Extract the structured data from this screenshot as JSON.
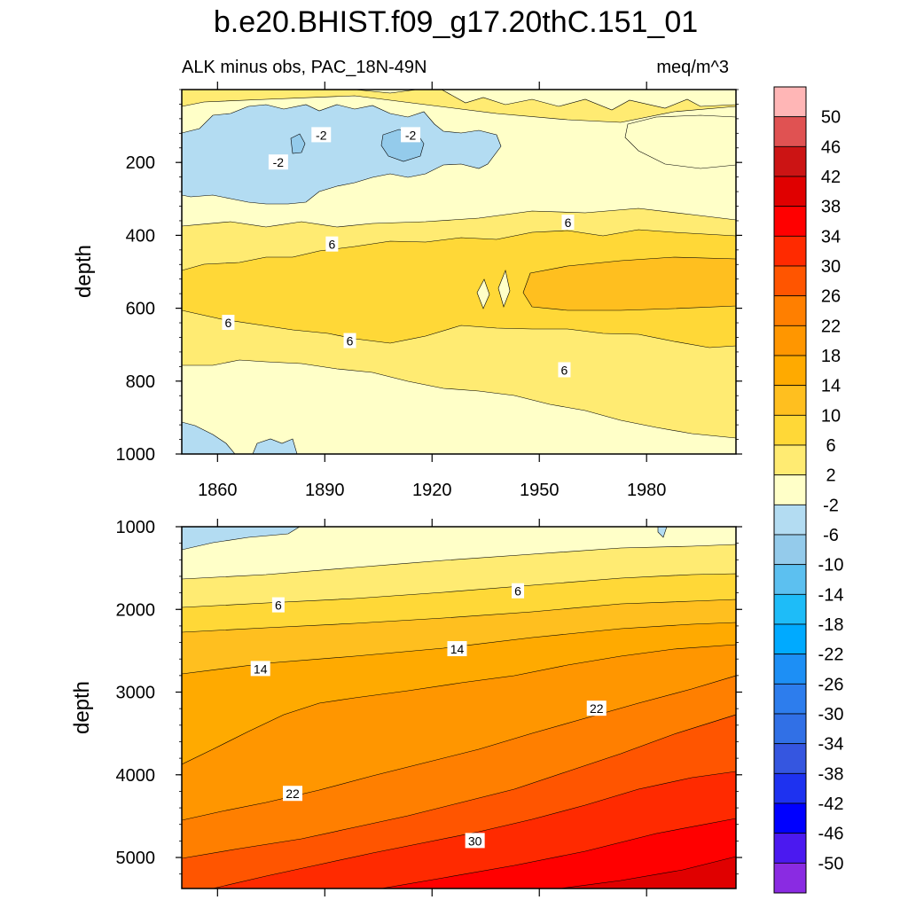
{
  "title": "b.e20.BHIST.f09_g17.20thC.151_01",
  "subtitle_left": "ALK minus obs, PAC_18N-49N",
  "subtitle_right": "meq/m^3",
  "chart_data": {
    "type": "contour",
    "variable": "ALK minus obs",
    "region": "PAC_18N-49N",
    "units": "meq/m^3",
    "x_range": [
      1850,
      2005
    ],
    "x_ticks": [
      "1860",
      "1890",
      "1920",
      "1950",
      "1980"
    ],
    "panels": [
      {
        "name": "upper",
        "ylabel": "depth",
        "y_range": [
          0,
          1000
        ],
        "y_ticks": [
          "200",
          "400",
          "600",
          "800",
          "1000"
        ],
        "contour_labels": [
          {
            "text": "-2",
            "x": 1889,
            "y": 125
          },
          {
            "text": "-2",
            "x": 1914,
            "y": 125
          },
          {
            "text": "-2",
            "x": 1877,
            "y": 200
          },
          {
            "text": "6",
            "x": 1892,
            "y": 425
          },
          {
            "text": "6",
            "x": 1958,
            "y": 365
          },
          {
            "text": "6",
            "x": 1863,
            "y": 640
          },
          {
            "text": "6",
            "x": 1897,
            "y": 690
          },
          {
            "text": "6",
            "x": 1957,
            "y": 770
          }
        ]
      },
      {
        "name": "lower",
        "ylabel": "depth",
        "y_range": [
          1000,
          5375
        ],
        "y_ticks": [
          "1000",
          "2000",
          "3000",
          "4000",
          "5000"
        ],
        "contour_labels": [
          {
            "text": "6",
            "x": 1877,
            "y": 1950
          },
          {
            "text": "6",
            "x": 1944,
            "y": 1780
          },
          {
            "text": "14",
            "x": 1872,
            "y": 2720
          },
          {
            "text": "14",
            "x": 1927,
            "y": 2480
          },
          {
            "text": "22",
            "x": 1966,
            "y": 3200
          },
          {
            "text": "22",
            "x": 1881,
            "y": 4230
          },
          {
            "text": "30",
            "x": 1932,
            "y": 4800
          }
        ]
      }
    ],
    "colorbar": {
      "levels": [
        "50",
        "46",
        "42",
        "38",
        "34",
        "30",
        "26",
        "22",
        "18",
        "14",
        "10",
        "6",
        "2",
        "-2",
        "-6",
        "-10",
        "-14",
        "-18",
        "-22",
        "-26",
        "-30",
        "-34",
        "-38",
        "-42",
        "-46",
        "-50"
      ],
      "colors": [
        "#ffb6b6",
        "#e05252",
        "#cc1414",
        "#e00000",
        "#ff0000",
        "#ff2a00",
        "#ff5500",
        "#ff7f00",
        "#ff9600",
        "#ffaa00",
        "#ffbf1f",
        "#ffd837",
        "#ffeb72",
        "#ffffc8",
        "#b3dcf2",
        "#94cbeb",
        "#5cc0f0",
        "#1ebcf8",
        "#00aaff",
        "#1d8ff5",
        "#2d7ded",
        "#3170e6",
        "#3556e0",
        "#1e32f0",
        "#0000ff",
        "#4b19f0",
        "#8a2be2"
      ]
    }
  }
}
